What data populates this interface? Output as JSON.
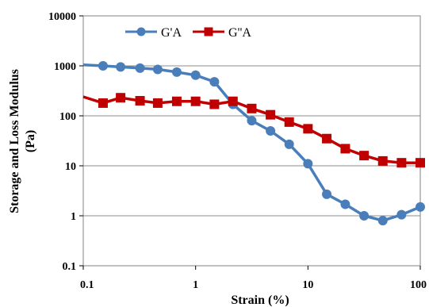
{
  "chart_data": {
    "type": "line",
    "xlabel": "Strain (%)",
    "ylabel_line1": "Storage and Loss Modulus",
    "ylabel_line2": "(Pa)",
    "x_scale": "log",
    "y_scale": "log",
    "xlim": [
      0.1,
      100
    ],
    "ylim": [
      0.1,
      10000
    ],
    "x_ticks": [
      "0.1",
      "1",
      "10",
      "100"
    ],
    "y_ticks": [
      "0.1",
      "1",
      "10",
      "100",
      "1000",
      "10000"
    ],
    "grid": "horizontal",
    "legend_position": "top",
    "series": [
      {
        "name": "G'A",
        "color": "#4a7ebb",
        "marker": "circle",
        "x": [
          0.1,
          0.15,
          0.215,
          0.32,
          0.46,
          0.68,
          1.0,
          1.47,
          2.15,
          3.16,
          4.64,
          6.81,
          10.0,
          14.7,
          21.5,
          31.6,
          46.4,
          68.1,
          100
        ],
        "y": [
          1050,
          1000,
          950,
          900,
          850,
          750,
          650,
          480,
          170,
          80,
          50,
          27,
          11,
          2.7,
          1.7,
          1.0,
          0.8,
          1.05,
          1.5
        ]
      },
      {
        "name": "G''A",
        "color": "#c00000",
        "marker": "square",
        "x": [
          0.1,
          0.15,
          0.215,
          0.32,
          0.46,
          0.68,
          1.0,
          1.47,
          2.15,
          3.16,
          4.64,
          6.81,
          10.0,
          14.7,
          21.5,
          31.6,
          46.4,
          68.1,
          100
        ],
        "y": [
          240,
          180,
          230,
          200,
          180,
          195,
          195,
          170,
          195,
          140,
          105,
          75,
          55,
          35,
          22,
          16,
          12.5,
          11.5,
          11.5
        ]
      }
    ]
  }
}
